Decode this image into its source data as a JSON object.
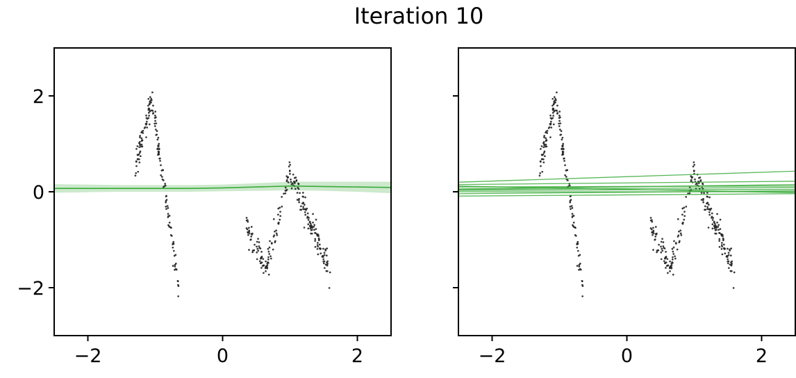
{
  "figure": {
    "title": "Iteration 10"
  },
  "colors": {
    "points": "#222222",
    "line": "#3aaa3a",
    "band": "#cde9cd",
    "axes": "#000000"
  },
  "chart_data": [
    {
      "type": "scatter",
      "subtype": "mean-with-uncertainty-band",
      "title": "",
      "xlabel": "",
      "ylabel": "",
      "xlim": [
        -2.5,
        2.5
      ],
      "ylim": [
        -3,
        3
      ],
      "xticks": [
        -2,
        0,
        2
      ],
      "xtick_labels": [
        "−2",
        "0",
        "2"
      ],
      "yticks": [
        -2,
        0,
        2
      ],
      "ytick_labels": [
        "−2",
        "0",
        "2"
      ],
      "grid": false,
      "series": [
        {
          "kind": "mean_line",
          "x": [
            -2.5,
            -2.0,
            -1.5,
            -1.0,
            -0.5,
            0.0,
            0.5,
            1.0,
            1.5,
            2.0,
            2.5
          ],
          "y": [
            0.07,
            0.07,
            0.07,
            0.07,
            0.07,
            0.08,
            0.1,
            0.12,
            0.11,
            0.1,
            0.09
          ],
          "band_lower": [
            -0.02,
            -0.01,
            0.0,
            0.0,
            0.0,
            0.01,
            0.02,
            0.03,
            0.02,
            0.0,
            -0.03
          ],
          "band_upper": [
            0.16,
            0.15,
            0.14,
            0.14,
            0.14,
            0.15,
            0.18,
            0.21,
            0.21,
            0.21,
            0.21
          ]
        }
      ],
      "scatter_points": {
        "description": "noisy observations",
        "x_range_1": [
          -1.3,
          -0.65
        ],
        "x_range_2": [
          0.35,
          1.6
        ],
        "n": 400
      }
    },
    {
      "type": "scatter",
      "subtype": "function-samples",
      "title": "",
      "xlabel": "",
      "ylabel": "",
      "xlim": [
        -2.5,
        2.5
      ],
      "ylim": [
        -3,
        3
      ],
      "xticks": [
        -2,
        0,
        2
      ],
      "xtick_labels": [
        "−2",
        "0",
        "2"
      ],
      "yticks": [
        -2,
        0,
        2
      ],
      "ytick_labels": [
        "",
        "",
        ""
      ],
      "grid": false,
      "sample_lines": [
        {
          "y_at_xmin": 0.2,
          "y_at_xmax": 0.43
        },
        {
          "y_at_xmin": 0.15,
          "y_at_xmax": 0.22
        },
        {
          "y_at_xmin": 0.1,
          "y_at_xmax": 0.12
        },
        {
          "y_at_xmin": 0.06,
          "y_at_xmax": 0.15
        },
        {
          "y_at_xmin": 0.03,
          "y_at_xmax": 0.05
        },
        {
          "y_at_xmin": 0.0,
          "y_at_xmax": 0.0
        },
        {
          "y_at_xmin": -0.04,
          "y_at_xmax": 0.02
        },
        {
          "y_at_xmin": -0.09,
          "y_at_xmax": -0.04
        },
        {
          "y_at_xmin": 0.12,
          "y_at_xmax": -0.02
        },
        {
          "y_at_xmin": 0.05,
          "y_at_xmax": 0.09
        }
      ],
      "scatter_points": {
        "description": "noisy observations",
        "x_range_1": [
          -1.3,
          -0.65
        ],
        "x_range_2": [
          0.35,
          1.6
        ],
        "n": 400
      }
    }
  ]
}
